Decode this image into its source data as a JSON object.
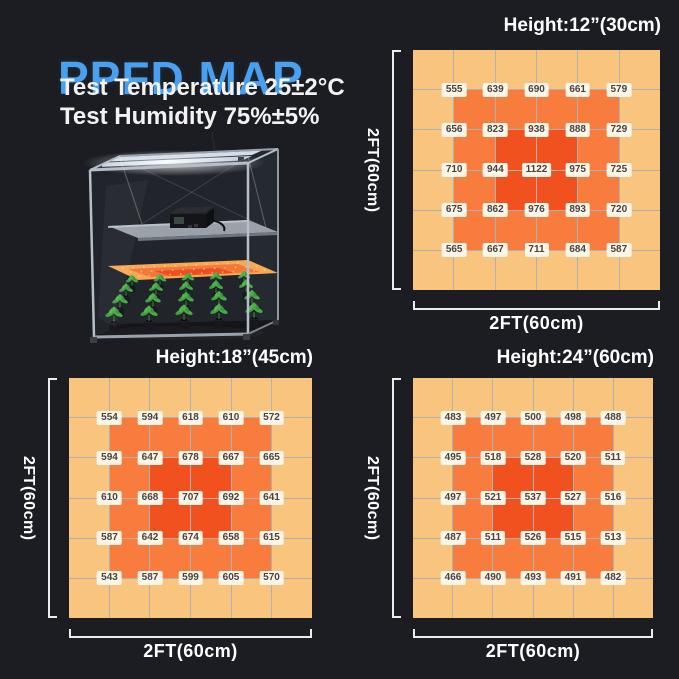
{
  "page": {
    "background_color": "#1b1d22",
    "accent_color": "#4aa0ee",
    "title": "PPFD MAP",
    "subtitle_lines": [
      "Test Temperature 25±2°C",
      "Test Humidity 75%±5%"
    ],
    "illustration": "grow-tent-with-led-bar-light-driver-ppfd-plane-and-seedlings"
  },
  "chart_data": {
    "type": "heatmap",
    "description": "PPFD distribution over a 2FT x 2FT area at three light hanging heights; 5x5 measurement points per map",
    "grid_cells": "6x6 color zones, values shown at interior gridline intersections",
    "legend_position": "none",
    "maps": [
      {
        "title": "Height:12”(30cm)",
        "x_axis_label": "2FT(60cm)",
        "y_axis_label": "2FT(60cm)",
        "values": [
          [
            555,
            639,
            690,
            661,
            579
          ],
          [
            656,
            823,
            938,
            888,
            729
          ],
          [
            710,
            944,
            1122,
            975,
            725
          ],
          [
            675,
            862,
            976,
            893,
            720
          ],
          [
            565,
            667,
            711,
            684,
            587
          ]
        ],
        "zone_colors": {
          "outer": "#f9c47e",
          "mid": "#f87c3d",
          "center": "#f1511f"
        }
      },
      {
        "title": "Height:18”(45cm)",
        "x_axis_label": "2FT(60cm)",
        "y_axis_label": "2FT(60cm)",
        "values": [
          [
            554,
            594,
            618,
            610,
            572
          ],
          [
            594,
            647,
            678,
            667,
            665
          ],
          [
            610,
            668,
            707,
            692,
            641
          ],
          [
            587,
            642,
            674,
            658,
            615
          ],
          [
            543,
            587,
            599,
            605,
            570
          ]
        ],
        "zone_colors": {
          "outer": "#f9c47e",
          "mid": "#f87c3d",
          "center": "#f1511f"
        }
      },
      {
        "title": "Height:24”(60cm)",
        "x_axis_label": "2FT(60cm)",
        "y_axis_label": "2FT(60cm)",
        "values": [
          [
            483,
            497,
            500,
            498,
            488
          ],
          [
            495,
            518,
            528,
            520,
            511
          ],
          [
            497,
            521,
            537,
            527,
            516
          ],
          [
            487,
            511,
            526,
            515,
            513
          ],
          [
            466,
            490,
            493,
            491,
            482
          ]
        ],
        "zone_colors": {
          "outer": "#f9c47e",
          "mid": "#f87c3d",
          "center": "#f1511f"
        }
      }
    ]
  }
}
